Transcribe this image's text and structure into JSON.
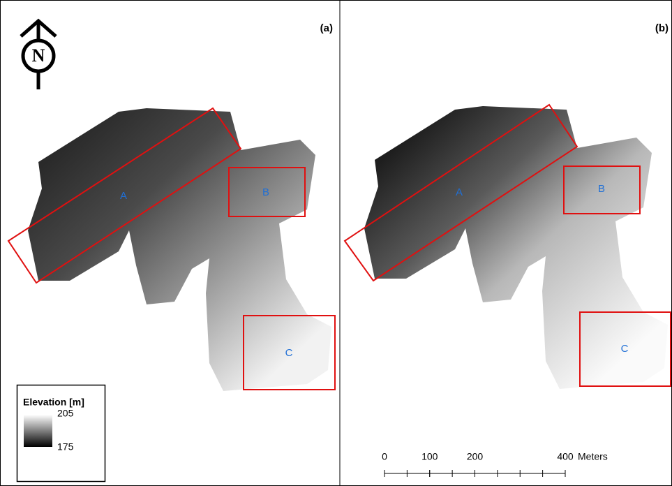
{
  "panels": [
    {
      "label": "(a)",
      "regions": [
        "A",
        "B",
        "C"
      ]
    },
    {
      "label": "(b)",
      "regions": [
        "A",
        "B",
        "C"
      ]
    }
  ],
  "north_arrow": "N",
  "legend": {
    "title": "Elevation [m]",
    "max": "205",
    "min": "175"
  },
  "scale_bar": {
    "ticks": [
      0,
      100,
      200,
      400
    ],
    "unit": "Meters"
  }
}
